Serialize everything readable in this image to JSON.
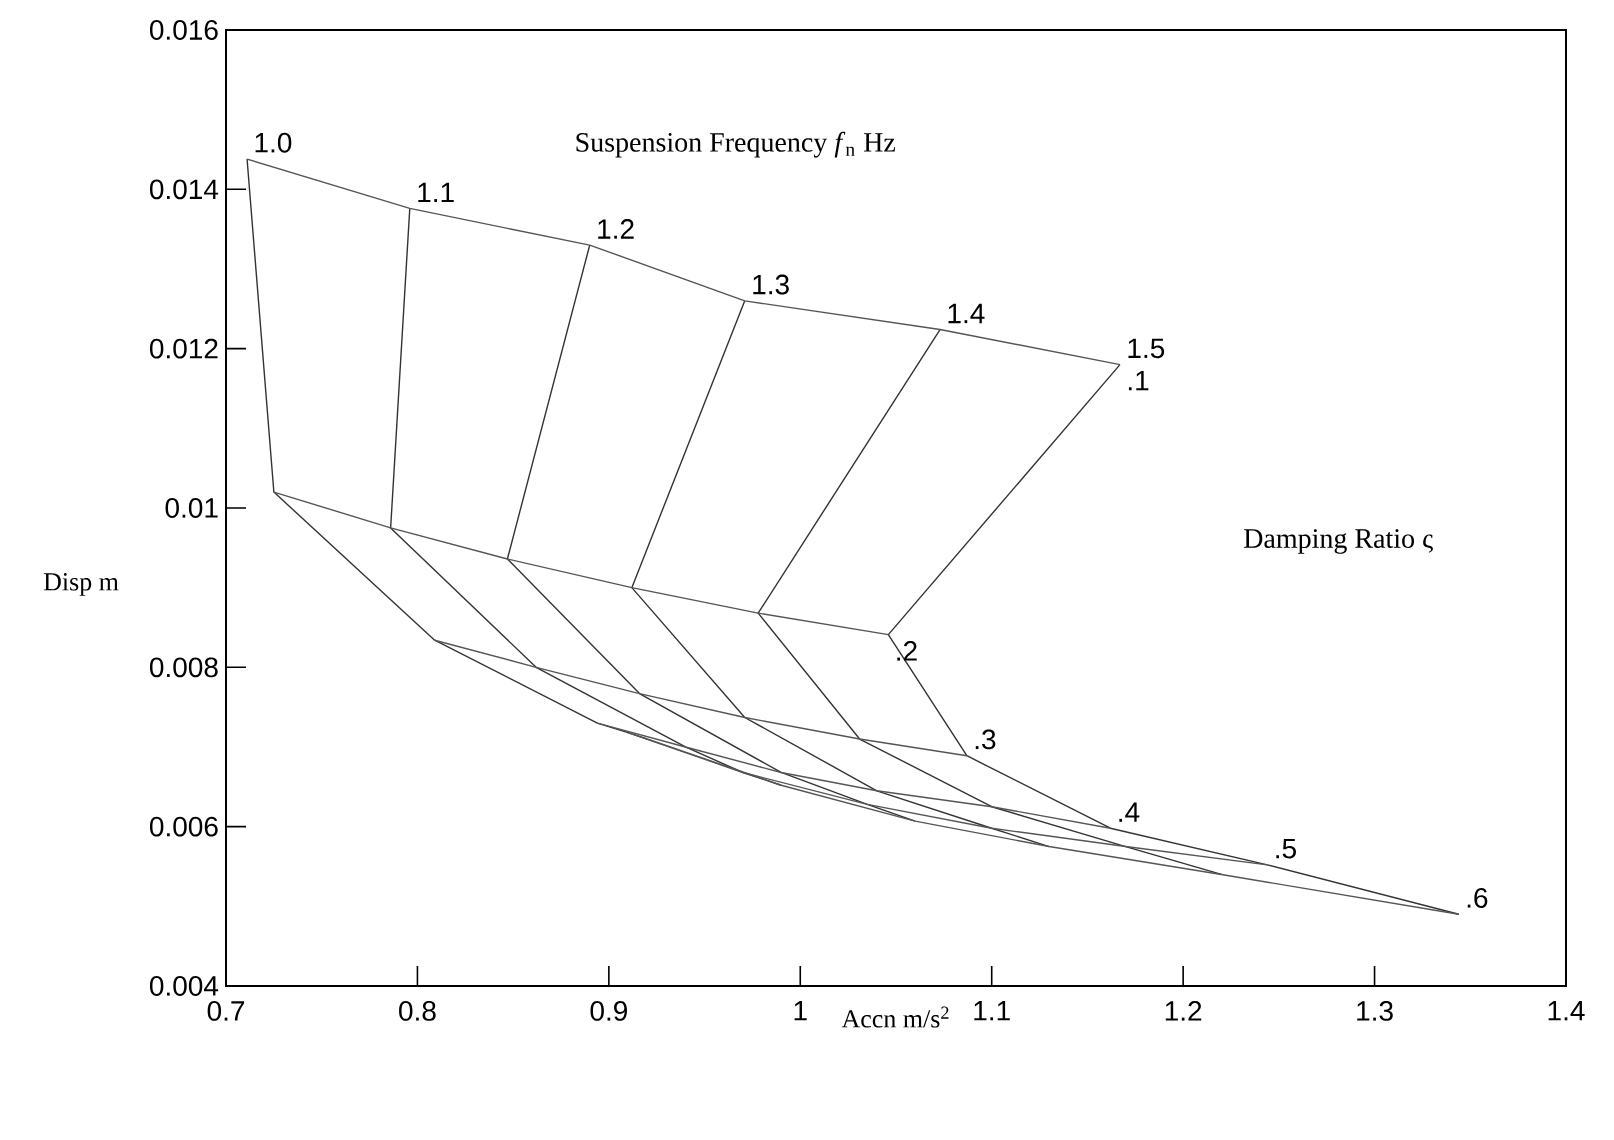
{
  "chart_data": {
    "type": "line",
    "xlabel": "Accn m/s$^{2}$",
    "ylabel": "Disp m",
    "annotations": [
      "Suspension Frequency *f*$_{n}$ Hz",
      "Damping Ratio ς"
    ],
    "xlim": [
      0.7,
      1.4
    ],
    "xticks": [
      0.7,
      0.8,
      0.9,
      1,
      1.1,
      1.2,
      1.3,
      1.4
    ],
    "ylim": [
      0.004,
      0.016
    ],
    "yticks": [
      0.004,
      0.006,
      0.008,
      0.01,
      0.012,
      0.014,
      0.016
    ],
    "grid": false,
    "legend": false,
    "marker": "none",
    "line_style": "solid",
    "series": [
      {
        "name": "1.0",
        "color": "#333333",
        "x": [
          0.92,
          0.91,
          0.894,
          0.809,
          0.725,
          0.711
        ],
        "values": [
          0.0071,
          0.00718,
          0.0073,
          0.00834,
          0.0102,
          0.01438
        ]
      },
      {
        "name": "1.1",
        "color": "#333333",
        "x": [
          0.99,
          0.97,
          0.94,
          0.862,
          0.786,
          0.796
        ],
        "values": [
          0.00652,
          0.00668,
          0.007,
          0.008,
          0.00975,
          0.01376
        ]
      },
      {
        "name": "1.2",
        "color": "#333333",
        "x": [
          1.06,
          1.035,
          0.99,
          0.916,
          0.847,
          0.89
        ],
        "values": [
          0.00607,
          0.00628,
          0.00668,
          0.00767,
          0.00936,
          0.0133
        ]
      },
      {
        "name": "1.3",
        "color": "#333333",
        "x": [
          1.13,
          1.1,
          1.04,
          0.971,
          0.912,
          0.971
        ],
        "values": [
          0.00575,
          0.00598,
          0.00645,
          0.00737,
          0.009,
          0.0126
        ]
      },
      {
        "name": "1.4",
        "color": "#333333",
        "x": [
          1.22,
          1.17,
          1.1,
          1.031,
          0.978,
          1.073
        ],
        "values": [
          0.0054,
          0.00575,
          0.00625,
          0.0071,
          0.00868,
          0.01224
        ]
      },
      {
        "name": "1.5",
        "color": "#333333",
        "x": [
          1.344,
          1.244,
          1.162,
          1.087,
          1.046,
          1.167
        ],
        "values": [
          0.0049,
          0.00552,
          0.00598,
          0.00689,
          0.00841,
          0.0118
        ]
      },
      {
        "name": ".1",
        "color": "#555555",
        "x": [
          0.711,
          0.796,
          0.89,
          0.971,
          1.073,
          1.167
        ],
        "values": [
          0.01438,
          0.01376,
          0.0133,
          0.0126,
          0.01224,
          0.0118
        ]
      },
      {
        "name": ".2",
        "color": "#555555",
        "x": [
          0.725,
          0.786,
          0.847,
          0.912,
          0.978,
          1.046
        ],
        "values": [
          0.0102,
          0.00975,
          0.00936,
          0.009,
          0.00868,
          0.00841
        ]
      },
      {
        "name": ".3",
        "color": "#555555",
        "x": [
          0.809,
          0.862,
          0.916,
          0.971,
          1.031,
          1.087
        ],
        "values": [
          0.00834,
          0.008,
          0.00767,
          0.00737,
          0.0071,
          0.00689
        ]
      },
      {
        "name": ".4",
        "color": "#555555",
        "x": [
          0.894,
          0.94,
          0.99,
          1.04,
          1.1,
          1.162
        ],
        "values": [
          0.0073,
          0.007,
          0.00668,
          0.00645,
          0.00625,
          0.00598
        ]
      },
      {
        "name": ".5",
        "color": "#555555",
        "x": [
          0.91,
          0.97,
          1.035,
          1.1,
          1.17,
          1.244
        ],
        "values": [
          0.00718,
          0.00668,
          0.00628,
          0.00598,
          0.00575,
          0.00552
        ]
      },
      {
        "name": ".6",
        "color": "#555555",
        "x": [
          0.92,
          0.99,
          1.06,
          1.13,
          1.22,
          1.344
        ],
        "values": [
          0.0071,
          0.00652,
          0.00607,
          0.00575,
          0.0054,
          0.0049
        ]
      }
    ]
  }
}
